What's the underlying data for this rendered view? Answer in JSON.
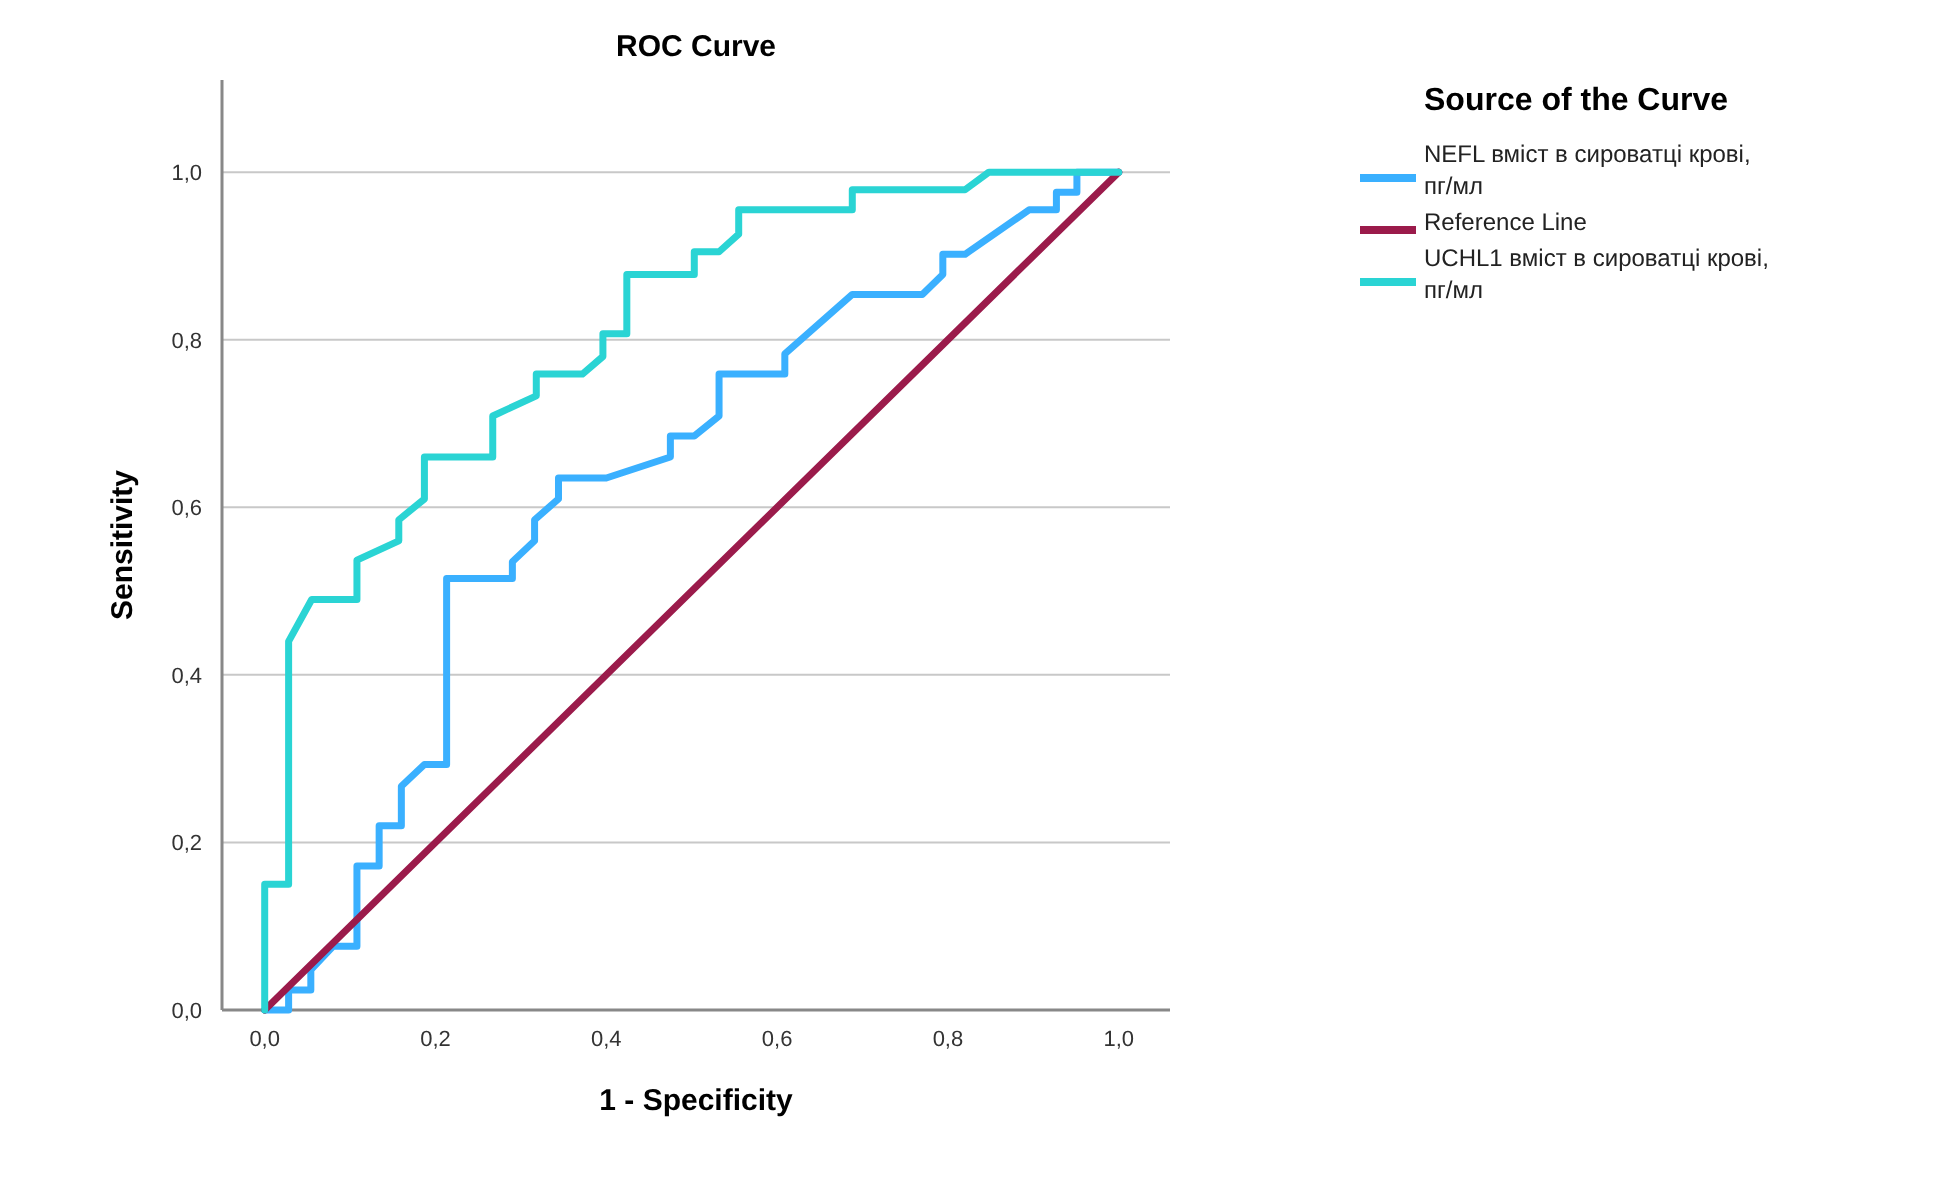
{
  "chart_data": {
    "type": "line",
    "title": "ROC Curve",
    "xlabel": "1 - Specificity",
    "ylabel": "Sensitivity",
    "legend_title": "Source of the Curve",
    "legend": "top right",
    "grid": "y",
    "marker": "none",
    "line_style": "solid",
    "xlim": [
      -0.05,
      1.06
    ],
    "ylim": [
      0,
      1.11
    ],
    "xticks": [
      {
        "value": 0,
        "label": "0,0"
      },
      {
        "value": 0.2,
        "label": "0,2"
      },
      {
        "value": 0.4,
        "label": "0,4"
      },
      {
        "value": 0.6,
        "label": "0,6"
      },
      {
        "value": 0.8,
        "label": "0,8"
      },
      {
        "value": 1,
        "label": "1,0"
      }
    ],
    "yticks": [
      {
        "value": 0,
        "label": "0,0"
      },
      {
        "value": 0.2,
        "label": "0,2"
      },
      {
        "value": 0.4,
        "label": "0,4"
      },
      {
        "value": 0.6,
        "label": "0,6"
      },
      {
        "value": 0.8,
        "label": "0,8"
      },
      {
        "value": 1,
        "label": "1,0"
      }
    ],
    "series": [
      {
        "name": "NEFL вміст в сироватці крові, пг/мл",
        "color": "#3ab0ff",
        "x": [
          0,
          0.028,
          0.028,
          0.054,
          0.054,
          0.08,
          0.108,
          0.108,
          0.134,
          0.134,
          0.16,
          0.16,
          0.187,
          0.213,
          0.213,
          0.29,
          0.29,
          0.316,
          0.316,
          0.344,
          0.344,
          0.4,
          0.475,
          0.475,
          0.503,
          0.532,
          0.532,
          0.609,
          0.609,
          0.688,
          0.77,
          0.794,
          0.794,
          0.82,
          0.895,
          0.927,
          0.927,
          0.951,
          0.951,
          1
        ],
        "values": [
          0,
          0,
          0.024,
          0.024,
          0.048,
          0.076,
          0.076,
          0.172,
          0.172,
          0.22,
          0.22,
          0.267,
          0.293,
          0.293,
          0.515,
          0.515,
          0.535,
          0.56,
          0.585,
          0.61,
          0.635,
          0.635,
          0.66,
          0.685,
          0.685,
          0.709,
          0.759,
          0.759,
          0.783,
          0.854,
          0.854,
          0.878,
          0.902,
          0.902,
          0.955,
          0.955,
          0.976,
          0.976,
          1,
          1
        ]
      },
      {
        "name": "Reference Line",
        "color": "#9b1b4b",
        "x": [
          0,
          1
        ],
        "values": [
          0,
          1
        ]
      },
      {
        "name": "UCHL1 вміст в сироватці крові, пг/мл",
        "color": "#2ad4d4",
        "x": [
          0,
          0,
          0.028,
          0.028,
          0.055,
          0.108,
          0.108,
          0.157,
          0.157,
          0.187,
          0.187,
          0.267,
          0.267,
          0.318,
          0.318,
          0.372,
          0.396,
          0.396,
          0.424,
          0.424,
          0.503,
          0.503,
          0.532,
          0.555,
          0.555,
          0.688,
          0.688,
          0.82,
          0.848,
          1
        ],
        "values": [
          0,
          0.15,
          0.15,
          0.44,
          0.49,
          0.49,
          0.537,
          0.56,
          0.585,
          0.61,
          0.66,
          0.66,
          0.709,
          0.733,
          0.759,
          0.759,
          0.78,
          0.807,
          0.807,
          0.878,
          0.878,
          0.905,
          0.905,
          0.926,
          0.955,
          0.955,
          0.979,
          0.979,
          1,
          1
        ]
      }
    ]
  }
}
